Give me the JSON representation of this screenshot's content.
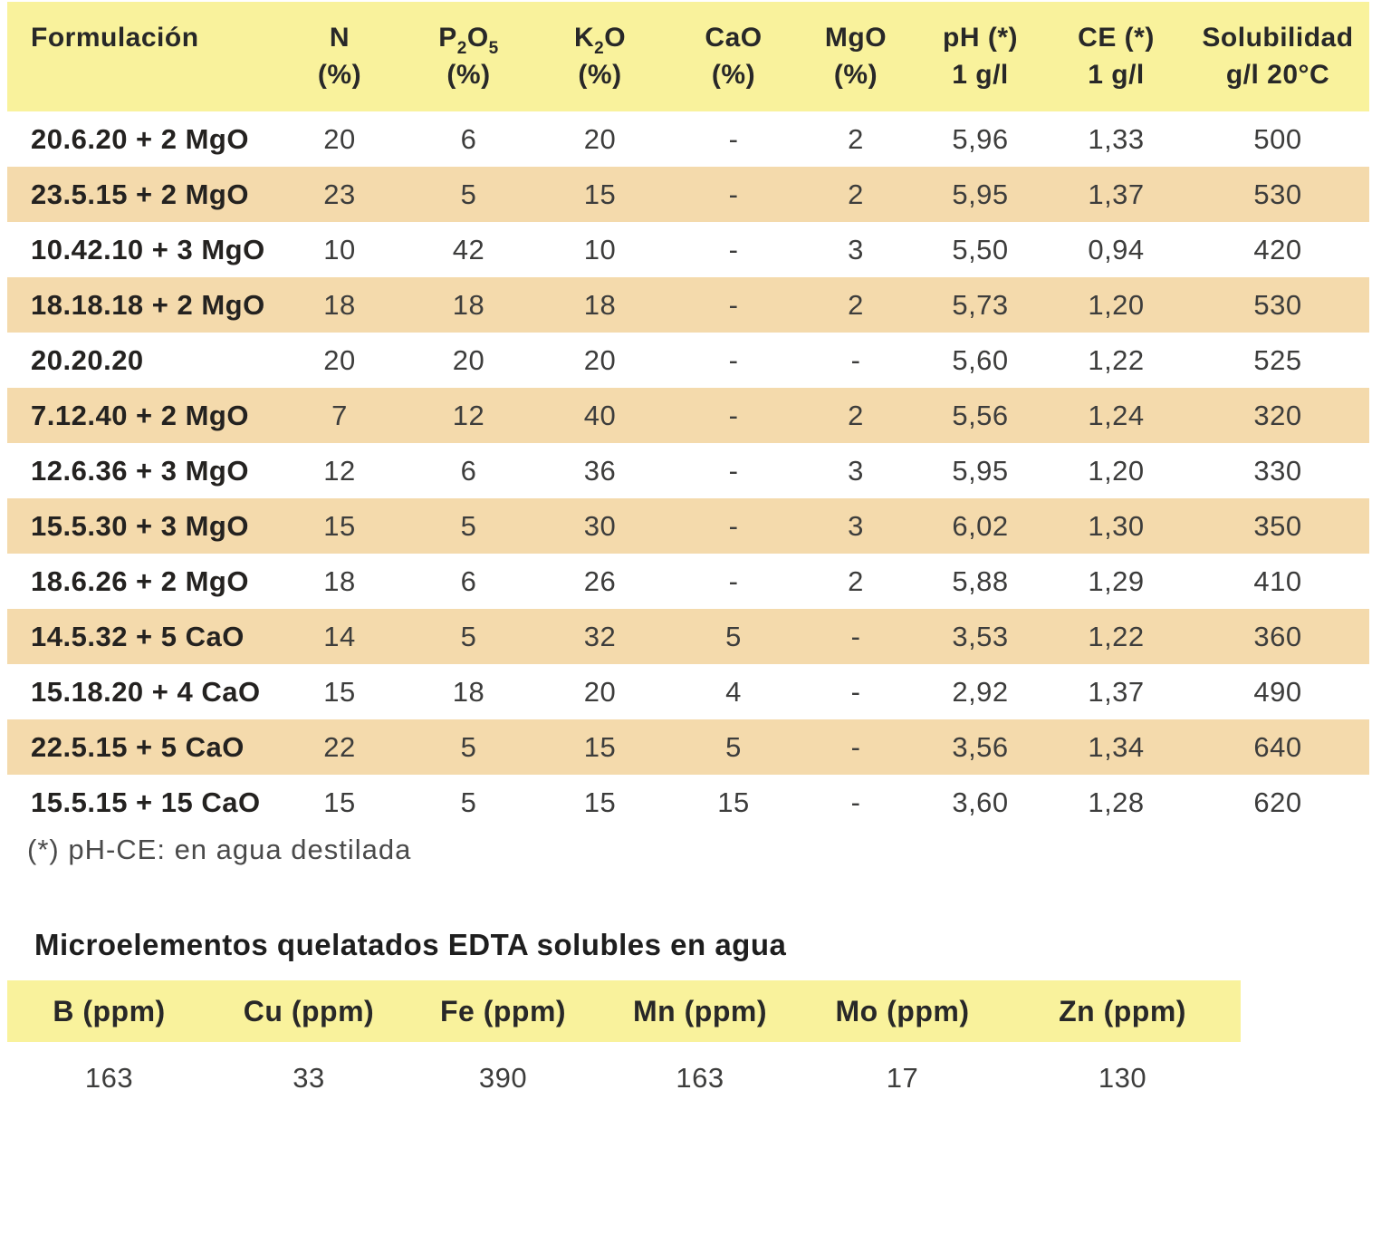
{
  "colors": {
    "header_yellow": "#F9F29C",
    "row_tan": "#F4DAAC",
    "row_white": "#FFFFFF",
    "text_bold": "#242220",
    "text_values": "#3D3D3C"
  },
  "main_table": {
    "headers": [
      {
        "id": "formulacion",
        "parts": [
          {
            "t": "Formulación"
          }
        ],
        "line2": ""
      },
      {
        "id": "n",
        "parts": [
          {
            "t": "N"
          }
        ],
        "line2": "(%)"
      },
      {
        "id": "p2o5",
        "parts": [
          {
            "t": "P"
          },
          {
            "t": "2",
            "sub": true
          },
          {
            "t": "O"
          },
          {
            "t": "5",
            "sub": true
          }
        ],
        "line2": "(%)"
      },
      {
        "id": "k2o",
        "parts": [
          {
            "t": "K"
          },
          {
            "t": "2",
            "sub": true
          },
          {
            "t": "O"
          }
        ],
        "line2": "(%)"
      },
      {
        "id": "cao",
        "parts": [
          {
            "t": "CaO"
          }
        ],
        "line2": "(%)"
      },
      {
        "id": "mgo",
        "parts": [
          {
            "t": "MgO"
          }
        ],
        "line2": "(%)"
      },
      {
        "id": "ph",
        "parts": [
          {
            "t": "pH (*)"
          }
        ],
        "line2": "1 g/l"
      },
      {
        "id": "ce",
        "parts": [
          {
            "t": "CE (*)"
          }
        ],
        "line2": "1 g/l"
      },
      {
        "id": "solubilidad",
        "parts": [
          {
            "t": "Solubilidad"
          }
        ],
        "line2": "g/l 20°C"
      }
    ],
    "rows": [
      {
        "name": "20.6.20 + 2 MgO",
        "values": [
          "20",
          "6",
          "20",
          "-",
          "2",
          "5,96",
          "1,33",
          "500"
        ]
      },
      {
        "name": "23.5.15 + 2 MgO",
        "values": [
          "23",
          "5",
          "15",
          "-",
          "2",
          "5,95",
          "1,37",
          "530"
        ]
      },
      {
        "name": "10.42.10 + 3 MgO",
        "values": [
          "10",
          "42",
          "10",
          "-",
          "3",
          "5,50",
          "0,94",
          "420"
        ]
      },
      {
        "name": "18.18.18 + 2 MgO",
        "values": [
          "18",
          "18",
          "18",
          "-",
          "2",
          "5,73",
          "1,20",
          "530"
        ]
      },
      {
        "name": "20.20.20",
        "values": [
          "20",
          "20",
          "20",
          "-",
          "-",
          "5,60",
          "1,22",
          "525"
        ]
      },
      {
        "name": "7.12.40 + 2 MgO",
        "values": [
          "7",
          "12",
          "40",
          "-",
          "2",
          "5,56",
          "1,24",
          "320"
        ]
      },
      {
        "name": "12.6.36 + 3 MgO",
        "values": [
          "12",
          "6",
          "36",
          "-",
          "3",
          "5,95",
          "1,20",
          "330"
        ]
      },
      {
        "name": "15.5.30 + 3 MgO",
        "values": [
          "15",
          "5",
          "30",
          "-",
          "3",
          "6,02",
          "1,30",
          "350"
        ]
      },
      {
        "name": "18.6.26 + 2 MgO",
        "values": [
          "18",
          "6",
          "26",
          "-",
          "2",
          "5,88",
          "1,29",
          "410"
        ]
      },
      {
        "name": "14.5.32 + 5 CaO",
        "values": [
          "14",
          "5",
          "32",
          "5",
          "-",
          "3,53",
          "1,22",
          "360"
        ]
      },
      {
        "name": "15.18.20 + 4 CaO",
        "values": [
          "15",
          "18",
          "20",
          "4",
          "-",
          "2,92",
          "1,37",
          "490"
        ]
      },
      {
        "name": "22.5.15 + 5 CaO",
        "values": [
          "22",
          "5",
          "15",
          "5",
          "-",
          "3,56",
          "1,34",
          "640"
        ]
      },
      {
        "name": "15.5.15 + 15 CaO",
        "values": [
          "15",
          "5",
          "15",
          "15",
          "-",
          "3,60",
          "1,28",
          "620"
        ]
      }
    ],
    "footnote": "(*) pH-CE: en agua destilada"
  },
  "micro_table": {
    "title": "Microelementos quelatados EDTA solubles en agua",
    "headers": [
      "B (ppm)",
      "Cu (ppm)",
      "Fe (ppm)",
      "Mn (ppm)",
      "Mo (ppm)",
      "Zn (ppm)"
    ],
    "values": [
      "163",
      "33",
      "390",
      "163",
      "17",
      "130"
    ]
  }
}
